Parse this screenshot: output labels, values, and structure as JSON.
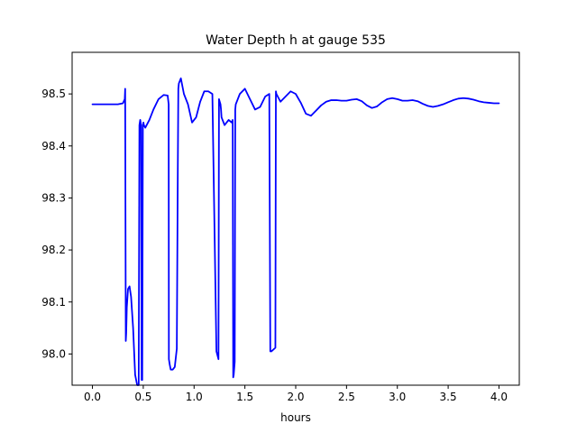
{
  "chart_data": {
    "type": "line",
    "title": "Water Depth h at gauge 535",
    "xlabel": "hours",
    "ylabel": "",
    "xlim": [
      -0.2,
      4.2
    ],
    "ylim": [
      97.94,
      98.58
    ],
    "x_ticks": [
      0.0,
      0.5,
      1.0,
      1.5,
      2.0,
      2.5,
      3.0,
      3.5,
      4.0
    ],
    "x_tick_labels": [
      "0.0",
      "0.5",
      "1.0",
      "1.5",
      "2.0",
      "2.5",
      "3.0",
      "3.5",
      "4.0"
    ],
    "y_ticks": [
      98.0,
      98.1,
      98.2,
      98.3,
      98.4,
      98.5
    ],
    "y_tick_labels": [
      "98.0",
      "98.1",
      "98.2",
      "98.3",
      "98.4",
      "98.5"
    ],
    "grid": false,
    "legend": "none",
    "series": [
      {
        "color": "#0000ff",
        "x": [
          0.0,
          0.1,
          0.2,
          0.25,
          0.3,
          0.318,
          0.322,
          0.328,
          0.332,
          0.338,
          0.35,
          0.365,
          0.38,
          0.4,
          0.42,
          0.44,
          0.455,
          0.462,
          0.47,
          0.478,
          0.484,
          0.49,
          0.496,
          0.502,
          0.506,
          0.52,
          0.56,
          0.6,
          0.65,
          0.7,
          0.74,
          0.75,
          0.752,
          0.76,
          0.77,
          0.79,
          0.81,
          0.83,
          0.84,
          0.845,
          0.85,
          0.87,
          0.9,
          0.94,
          0.98,
          1.02,
          1.06,
          1.1,
          1.14,
          1.18,
          1.22,
          1.24,
          1.245,
          1.26,
          1.265,
          1.27,
          1.3,
          1.34,
          1.37,
          1.38,
          1.385,
          1.39,
          1.4,
          1.405,
          1.41,
          1.45,
          1.5,
          1.55,
          1.6,
          1.65,
          1.7,
          1.74,
          1.75,
          1.76,
          1.8,
          1.805,
          1.81,
          1.85,
          1.9,
          1.95,
          2.0,
          2.05,
          2.1,
          2.15,
          2.2,
          2.25,
          2.3,
          2.35,
          2.4,
          2.45,
          2.5,
          2.55,
          2.6,
          2.65,
          2.7,
          2.75,
          2.8,
          2.85,
          2.9,
          2.95,
          3.0,
          3.05,
          3.1,
          3.15,
          3.2,
          3.25,
          3.3,
          3.35,
          3.4,
          3.45,
          3.5,
          3.55,
          3.6,
          3.65,
          3.7,
          3.75,
          3.8,
          3.85,
          3.9,
          3.95,
          4.0
        ],
        "y": [
          98.48,
          98.48,
          98.48,
          98.48,
          98.482,
          98.49,
          98.51,
          98.025,
          98.04,
          98.09,
          98.125,
          98.13,
          98.11,
          98.05,
          97.96,
          97.94,
          97.94,
          98.44,
          98.45,
          98.44,
          97.95,
          97.95,
          98.44,
          98.445,
          98.44,
          98.435,
          98.45,
          98.47,
          98.49,
          98.498,
          98.497,
          98.48,
          97.99,
          97.98,
          97.97,
          97.97,
          97.975,
          98.01,
          98.36,
          98.51,
          98.52,
          98.53,
          98.5,
          98.48,
          98.445,
          98.455,
          98.485,
          98.505,
          98.505,
          98.5,
          98.005,
          97.99,
          98.49,
          98.48,
          98.47,
          98.455,
          98.44,
          98.45,
          98.445,
          98.45,
          97.955,
          97.96,
          97.985,
          98.47,
          98.48,
          98.5,
          98.51,
          98.49,
          98.47,
          98.475,
          98.495,
          98.5,
          98.005,
          98.005,
          98.012,
          98.505,
          98.5,
          98.485,
          98.495,
          98.505,
          98.5,
          98.483,
          98.462,
          98.458,
          98.468,
          98.478,
          98.485,
          98.488,
          98.488,
          98.487,
          98.487,
          98.489,
          98.49,
          98.486,
          98.478,
          98.473,
          98.476,
          98.484,
          98.49,
          98.492,
          98.49,
          98.487,
          98.487,
          98.488,
          98.486,
          98.481,
          98.477,
          98.475,
          98.477,
          98.48,
          98.484,
          98.488,
          98.491,
          98.492,
          98.491,
          98.489,
          98.486,
          98.484,
          98.483,
          98.482,
          98.482
        ]
      }
    ]
  }
}
